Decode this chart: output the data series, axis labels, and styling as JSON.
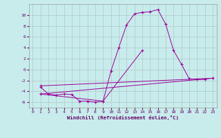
{
  "title": "",
  "xlabel": "Windchill (Refroidissement éolien,°C)",
  "background_color": "#c8ecec",
  "line_color": "#990099",
  "xlim": [
    -0.5,
    23.5
  ],
  "ylim": [
    -7,
    12
  ],
  "xticks": [
    0,
    1,
    2,
    3,
    4,
    5,
    6,
    7,
    8,
    9,
    10,
    11,
    12,
    13,
    14,
    15,
    16,
    17,
    18,
    19,
    20,
    21,
    22,
    23
  ],
  "yticks": [
    -6,
    -4,
    -2,
    0,
    2,
    4,
    6,
    8,
    10
  ],
  "grid_color": "#b0c8c8",
  "series": {
    "line1": {
      "x": [
        1,
        2,
        3,
        4,
        5,
        6,
        7,
        8,
        9,
        10,
        11,
        12,
        13,
        14,
        15,
        16,
        17,
        18,
        19,
        20,
        21,
        22
      ],
      "y": [
        -3.2,
        -4.5,
        -4.7,
        -4.5,
        -4.6,
        -5.8,
        -5.8,
        -6.0,
        -5.8,
        -0.3,
        4.0,
        8.2,
        10.2,
        10.5,
        10.6,
        11.0,
        8.3,
        3.5,
        1.0,
        -1.7,
        -1.8,
        -1.8
      ]
    },
    "line2": {
      "x": [
        1,
        23
      ],
      "y": [
        -3.0,
        -1.6
      ]
    },
    "line3": {
      "x": [
        1,
        23
      ],
      "y": [
        -4.5,
        -1.6
      ]
    },
    "line4": {
      "x": [
        1,
        9,
        14
      ],
      "y": [
        -4.5,
        -5.8,
        3.5
      ]
    }
  }
}
